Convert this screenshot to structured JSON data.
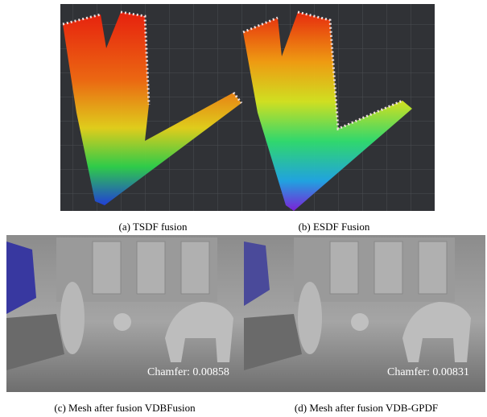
{
  "figure": {
    "top_captions": [
      "(a) TSDF fusion",
      "(b) ESDF Fusion"
    ],
    "overlays": [
      "Chamfer: 0.00858",
      "Chamfer: 0.00831"
    ],
    "bottom_captions": [
      "(c) Mesh after fusion VDBFusion",
      "(d) Mesh after fusion VDB-GPDF"
    ]
  }
}
